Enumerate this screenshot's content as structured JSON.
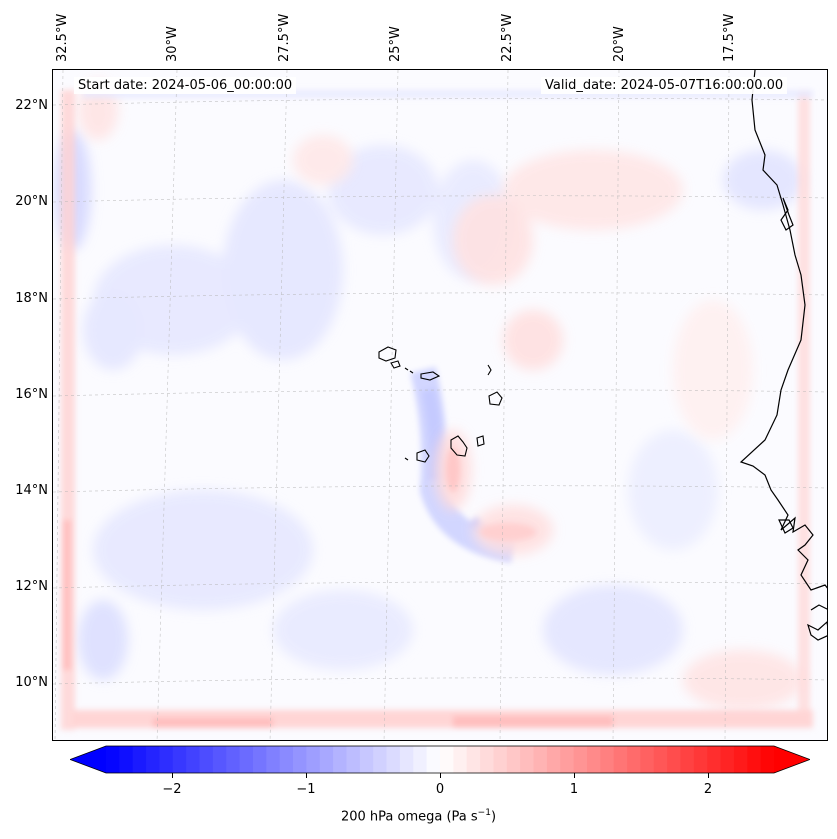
{
  "map": {
    "start_date": "Start date: 2024-05-06_00:00:00",
    "valid_date": "Valid_date: 2024-05-07T16:00:00.00",
    "longitude_labels": [
      "32.5°W",
      "30°W",
      "27.5°W",
      "25°W",
      "22.5°W",
      "20°W",
      "17.5°W"
    ],
    "latitude_labels": [
      "22°N",
      "20°N",
      "18°N",
      "16°N",
      "14°N",
      "12°N",
      "10°N"
    ],
    "lon_range": [
      -33.2,
      -16.0
    ],
    "lat_range": [
      8.9,
      22.8
    ],
    "gridlines": true
  },
  "colorbar": {
    "label_main": "200 hPa omega (Pa s",
    "label_exp": "−1",
    "label_close": ")",
    "ticks": [
      "−2",
      "−1",
      "0",
      "1",
      "2"
    ],
    "tick_values": [
      -2,
      -1,
      0,
      1,
      2
    ],
    "range": [
      -2.5,
      2.5
    ],
    "extend": "both",
    "colormap": "bwr",
    "colors": {
      "low": "#0000ff",
      "mid": "#ffffff",
      "high": "#ff0000"
    }
  },
  "chart_data": {
    "type": "heatmap",
    "variable": "200 hPa omega",
    "units": "Pa s−1",
    "color_range": [
      -2.5,
      2.5
    ]
  }
}
